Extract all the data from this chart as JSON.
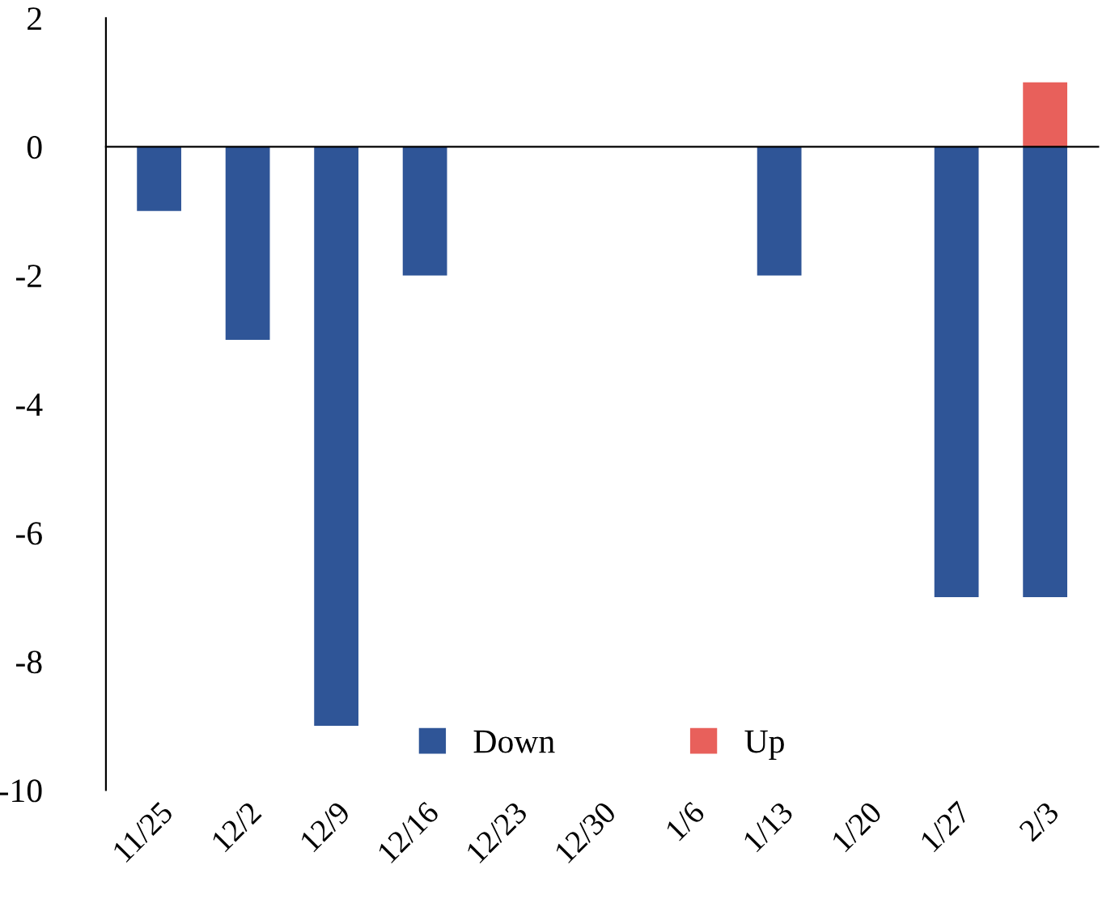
{
  "chart_data": {
    "type": "bar",
    "categories": [
      "11/25",
      "12/2",
      "12/9",
      "12/16",
      "12/23",
      "12/30",
      "1/6",
      "1/13",
      "1/20",
      "1/27",
      "2/3"
    ],
    "series": [
      {
        "name": "Down",
        "color": "#2f5597",
        "values": [
          -1,
          -3,
          -9,
          -2,
          null,
          null,
          null,
          -2,
          null,
          -7,
          -7
        ]
      },
      {
        "name": "Up",
        "color": "#e8605b",
        "values": [
          null,
          null,
          null,
          null,
          null,
          null,
          null,
          null,
          null,
          null,
          1
        ]
      }
    ],
    "ylim": [
      -10,
      2
    ],
    "yticks": [
      -10,
      -8,
      -6,
      -4,
      -2,
      0,
      2
    ],
    "legend": "bottom"
  }
}
